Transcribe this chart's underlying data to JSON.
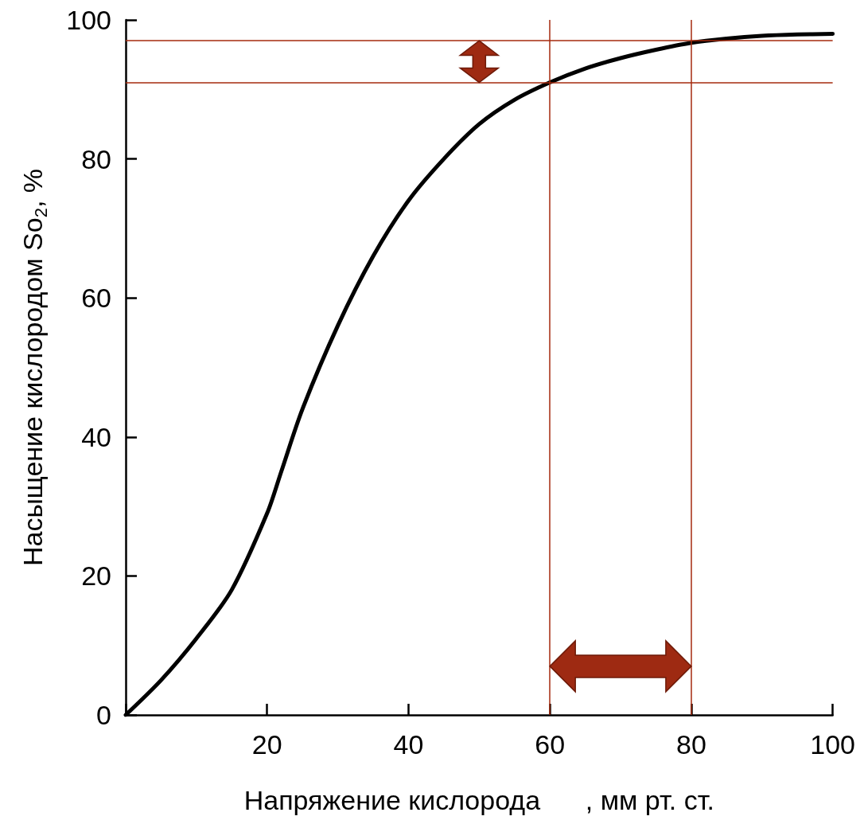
{
  "chart_data": {
    "type": "line",
    "xlabel": "Напряжение кислорода      , мм рт. ст.",
    "ylabel": "Насыщение кислородом So$_{2}$, %",
    "x": [
      0,
      5,
      10,
      15,
      20,
      22,
      25,
      30,
      35,
      40,
      45,
      50,
      55,
      60,
      65,
      70,
      75,
      80,
      85,
      90,
      95,
      100
    ],
    "series": [
      {
        "color": "#000000",
        "values": [
          0,
          5,
          11,
          18,
          29,
          35,
          44,
          56,
          66,
          74,
          80,
          85,
          88.5,
          91,
          93,
          94.5,
          95.7,
          96.7,
          97.3,
          97.7,
          97.9,
          98
        ]
      }
    ],
    "xlim": [
      0,
      100
    ],
    "ylim": [
      0,
      100
    ],
    "xticks": [
      {
        "value": 0,
        "label": null
      },
      20,
      40,
      60,
      80,
      100
    ],
    "yticks": [
      0,
      20,
      40,
      60,
      80,
      100
    ],
    "ref_lines": [
      {
        "axis": "y",
        "value": 97,
        "color": "#a52a0e"
      },
      {
        "axis": "y",
        "value": 91,
        "color": "#a52a0e"
      },
      {
        "axis": "x",
        "value": 60,
        "color": "#a52a0e"
      },
      {
        "axis": "x",
        "value": 80,
        "color": "#a52a0e"
      }
    ],
    "grid": false,
    "marker": "none",
    "line_style": "solid"
  }
}
